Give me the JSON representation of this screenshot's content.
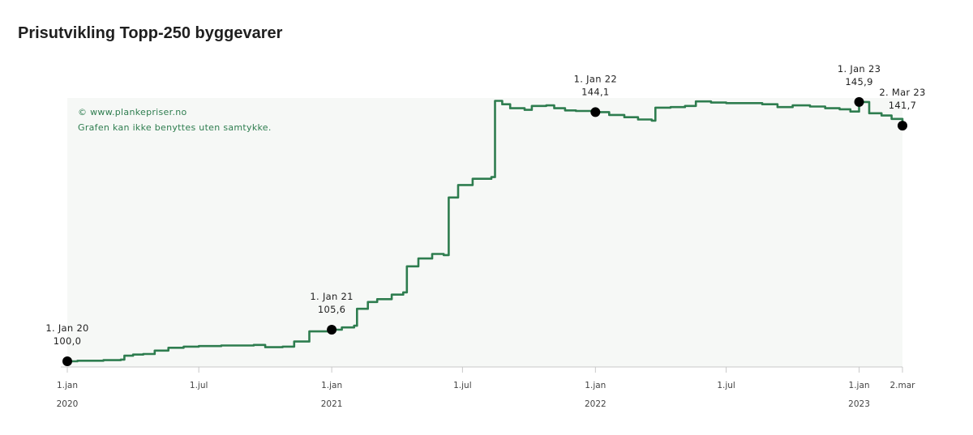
{
  "title": "Prisutvikling Topp-250 byggevarer",
  "credits": [
    "© www.plankepriser.no",
    "Grafen kan ikke benyttes uten samtykke."
  ],
  "colors": {
    "line": "#2e7d4f",
    "plot_bg": "#f6f8f6",
    "marker": "#000000",
    "credit": "#2e7d4f"
  },
  "chart_data": {
    "type": "line",
    "title": "Prisutvikling Topp-250 byggevarer",
    "xlabel": "",
    "ylabel": "",
    "xlim": [
      "2020-01-01",
      "2023-03-02"
    ],
    "ylim": [
      99,
      146.6
    ],
    "grid": false,
    "x_ticks": [
      {
        "date": "2020-01-01",
        "label": "1.jan",
        "year": "2020"
      },
      {
        "date": "2020-07-01",
        "label": "1.jul",
        "year": ""
      },
      {
        "date": "2021-01-01",
        "label": "1.jan",
        "year": "2021"
      },
      {
        "date": "2021-07-01",
        "label": "1.jul",
        "year": ""
      },
      {
        "date": "2022-01-01",
        "label": "1.jan",
        "year": "2022"
      },
      {
        "date": "2022-07-01",
        "label": "1.jul",
        "year": ""
      },
      {
        "date": "2023-01-01",
        "label": "1.jan",
        "year": "2023"
      },
      {
        "date": "2023-03-02",
        "label": "2.mar",
        "year": ""
      }
    ],
    "series": [
      {
        "points": [
          [
            "2020-01-01",
            100.0
          ],
          [
            "2020-01-15",
            100.1
          ],
          [
            "2020-02-01",
            100.1
          ],
          [
            "2020-02-20",
            100.2
          ],
          [
            "2020-03-01",
            100.2
          ],
          [
            "2020-03-15",
            100.3
          ],
          [
            "2020-03-20",
            101.0
          ],
          [
            "2020-04-01",
            101.2
          ],
          [
            "2020-04-15",
            101.3
          ],
          [
            "2020-05-01",
            101.9
          ],
          [
            "2020-05-20",
            102.4
          ],
          [
            "2020-06-10",
            102.6
          ],
          [
            "2020-07-01",
            102.7
          ],
          [
            "2020-08-01",
            102.8
          ],
          [
            "2020-08-20",
            102.8
          ],
          [
            "2020-09-15",
            102.9
          ],
          [
            "2020-10-01",
            102.5
          ],
          [
            "2020-10-25",
            102.6
          ],
          [
            "2020-11-10",
            103.5
          ],
          [
            "2020-12-01",
            105.3
          ],
          [
            "2021-01-01",
            105.6
          ],
          [
            "2021-01-15",
            106.0
          ],
          [
            "2021-02-01",
            106.3
          ],
          [
            "2021-02-05",
            109.3
          ],
          [
            "2021-02-20",
            110.5
          ],
          [
            "2021-03-05",
            111.0
          ],
          [
            "2021-03-25",
            111.8
          ],
          [
            "2021-04-10",
            112.2
          ],
          [
            "2021-04-15",
            116.8
          ],
          [
            "2021-05-01",
            118.2
          ],
          [
            "2021-05-20",
            119.0
          ],
          [
            "2021-06-05",
            118.8
          ],
          [
            "2021-06-12",
            129.0
          ],
          [
            "2021-06-25",
            131.2
          ],
          [
            "2021-07-15",
            132.3
          ],
          [
            "2021-08-10",
            132.6
          ],
          [
            "2021-08-15",
            146.1
          ],
          [
            "2021-08-25",
            145.5
          ],
          [
            "2021-09-05",
            144.8
          ],
          [
            "2021-09-25",
            144.5
          ],
          [
            "2021-10-05",
            145.2
          ],
          [
            "2021-10-25",
            145.3
          ],
          [
            "2021-11-05",
            144.8
          ],
          [
            "2021-11-20",
            144.4
          ],
          [
            "2021-12-05",
            144.3
          ],
          [
            "2022-01-01",
            144.1
          ],
          [
            "2022-01-20",
            143.6
          ],
          [
            "2022-02-10",
            143.2
          ],
          [
            "2022-03-01",
            142.8
          ],
          [
            "2022-03-20",
            142.6
          ],
          [
            "2022-03-25",
            144.9
          ],
          [
            "2022-04-15",
            145.0
          ],
          [
            "2022-05-05",
            145.2
          ],
          [
            "2022-05-20",
            146.0
          ],
          [
            "2022-06-10",
            145.8
          ],
          [
            "2022-07-01",
            145.7
          ],
          [
            "2022-08-01",
            145.7
          ],
          [
            "2022-08-20",
            145.5
          ],
          [
            "2022-09-10",
            145.0
          ],
          [
            "2022-10-01",
            145.3
          ],
          [
            "2022-10-25",
            145.1
          ],
          [
            "2022-11-15",
            144.8
          ],
          [
            "2022-12-05",
            144.6
          ],
          [
            "2022-12-20",
            144.2
          ],
          [
            "2023-01-01",
            145.9
          ],
          [
            "2023-01-15",
            143.9
          ],
          [
            "2023-02-01",
            143.5
          ],
          [
            "2023-02-15",
            142.9
          ],
          [
            "2023-03-02",
            141.7
          ]
        ]
      }
    ],
    "annotations": [
      {
        "date": "2020-01-01",
        "value": 100.0,
        "label_date": "1. Jan 20",
        "label_value": "100,0",
        "align": "middle"
      },
      {
        "date": "2021-01-01",
        "value": 105.6,
        "label_date": "1. Jan 21",
        "label_value": "105,6",
        "align": "middle"
      },
      {
        "date": "2022-01-01",
        "value": 144.1,
        "label_date": "1. Jan 22",
        "label_value": "144,1",
        "align": "middle"
      },
      {
        "date": "2023-01-01",
        "value": 145.9,
        "label_date": "1. Jan 23",
        "label_value": "145,9",
        "align": "middle"
      },
      {
        "date": "2023-03-02",
        "value": 141.7,
        "label_date": "2. Mar 23",
        "label_value": "141,7",
        "align": "end"
      }
    ]
  }
}
